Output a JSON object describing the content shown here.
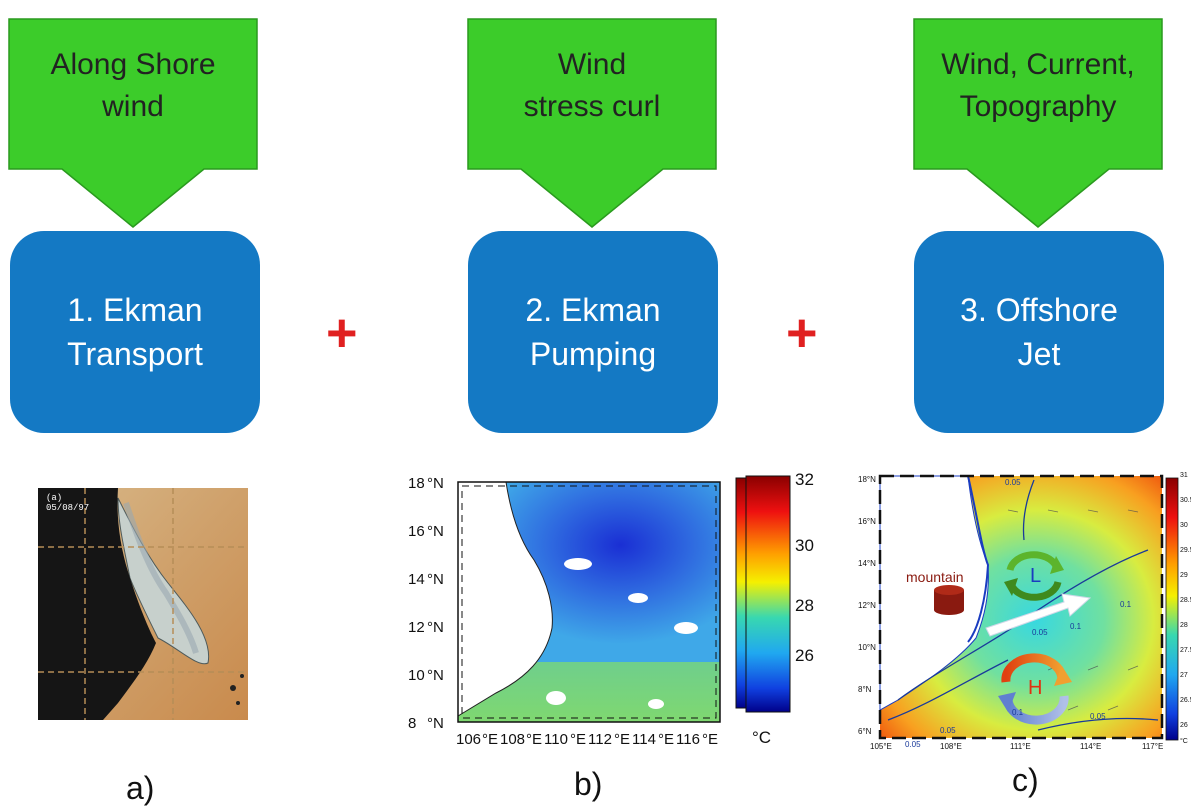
{
  "drivers": [
    {
      "lines": [
        "Along Shore",
        "wind"
      ]
    },
    {
      "lines": [
        "Wind",
        "stress curl"
      ]
    },
    {
      "lines": [
        "Wind, Current,",
        "Topography"
      ]
    }
  ],
  "processes": [
    {
      "lines": [
        "1. Ekman",
        "Transport"
      ]
    },
    {
      "lines": [
        "2. Ekman",
        "Pumping"
      ]
    },
    {
      "lines": [
        "3. Offshore",
        "Jet"
      ]
    }
  ],
  "plus_symbol": "+",
  "captions": [
    "a)",
    "b)",
    "c)"
  ],
  "panel_a": {
    "label": "(a)",
    "date": "05/08/97"
  },
  "panel_b": {
    "y_ticks": [
      "18",
      "16",
      "14",
      "12",
      "10",
      "8"
    ],
    "y_unit": "°N",
    "x_ticks": [
      "106",
      "108",
      "110",
      "112",
      "114",
      "116"
    ],
    "x_unit": "°E",
    "colorbar_ticks": [
      "32",
      "30",
      "28",
      "26"
    ],
    "colorbar_unit": "°C"
  },
  "panel_c": {
    "y_ticks": [
      "18°N",
      "16°N",
      "14°N",
      "12°N",
      "10°N",
      "8°N",
      "6°N"
    ],
    "x_ticks": [
      "105°E",
      "108°E",
      "111°E",
      "114°E",
      "117°E"
    ],
    "colorbar_ticks": [
      "31",
      "30.5",
      "30",
      "29.5",
      "29",
      "28.5",
      "28",
      "27.5",
      "27",
      "26.5",
      "26"
    ],
    "colorbar_unit": "°C",
    "mountain_label": "mountain",
    "low_label": "L",
    "high_label": "H",
    "contours": [
      "0.05",
      "0.05",
      "0.1",
      "0.1",
      "0.05",
      "0.1",
      "0.05",
      "0.05"
    ]
  },
  "colors": {
    "driver_fill": "#3ccc2a",
    "driver_stroke": "#2a9a1e",
    "process_fill": "#1479c4",
    "plus": "#e02020"
  }
}
